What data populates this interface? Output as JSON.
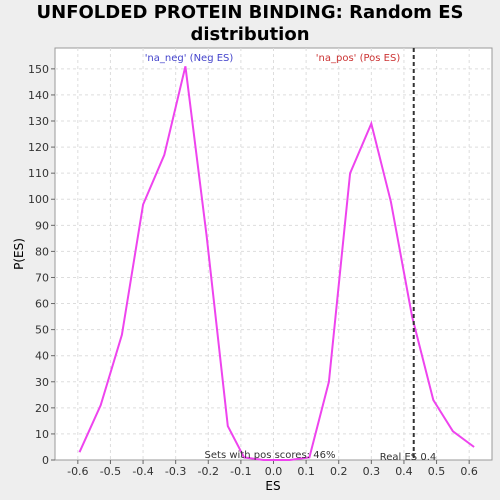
{
  "chart_data": {
    "type": "line",
    "title_line1": "UNFOLDED PROTEIN BINDING: Random ES",
    "title_line2": "distribution",
    "xlabel": "ES",
    "ylabel": "P(ES)",
    "xlim": [
      -0.67,
      0.67
    ],
    "ylim": [
      0,
      158
    ],
    "xticks": [
      -0.6,
      -0.5,
      -0.4,
      -0.3,
      -0.2,
      -0.1,
      0.0,
      0.1,
      0.2,
      0.3,
      0.4,
      0.5,
      0.6
    ],
    "xtick_labels": [
      "-0.6",
      "-0.5",
      "-0.4",
      "-0.3",
      "-0.2",
      "-0.1",
      "0.0",
      "0.1",
      "0.2",
      "0.3",
      "0.4",
      "0.5",
      "0.6"
    ],
    "yticks": [
      0,
      10,
      20,
      30,
      40,
      50,
      60,
      70,
      80,
      90,
      100,
      110,
      120,
      130,
      140,
      150
    ],
    "ytick_labels": [
      "0",
      "10",
      "20",
      "30",
      "40",
      "50",
      "60",
      "70",
      "80",
      "90",
      "100",
      "110",
      "120",
      "130",
      "140",
      "150"
    ],
    "grid": true,
    "line_color": "#ee44ee",
    "series": [
      {
        "x": [
          -0.595,
          -0.53,
          -0.465,
          -0.4,
          -0.335,
          -0.27,
          -0.205,
          -0.14,
          -0.09,
          -0.03,
          0.05,
          0.11,
          0.17,
          0.235,
          0.3,
          0.36,
          0.425,
          0.49,
          0.55,
          0.615
        ],
        "y": [
          3,
          21,
          48,
          98,
          117,
          151,
          86,
          13,
          1,
          0,
          0,
          1,
          30,
          110,
          129,
          99,
          55,
          23,
          11,
          5
        ]
      }
    ],
    "annotations": {
      "neg_label": "'na_neg' (Neg ES)",
      "pos_label": "'na_pos' (Pos ES)",
      "neg_color": "#4444cc",
      "pos_color": "#cc3333",
      "sets_text": "Sets with pos scores: 46%",
      "real_es_text": "Real ES 0.4",
      "real_es_value": 0.43
    }
  }
}
